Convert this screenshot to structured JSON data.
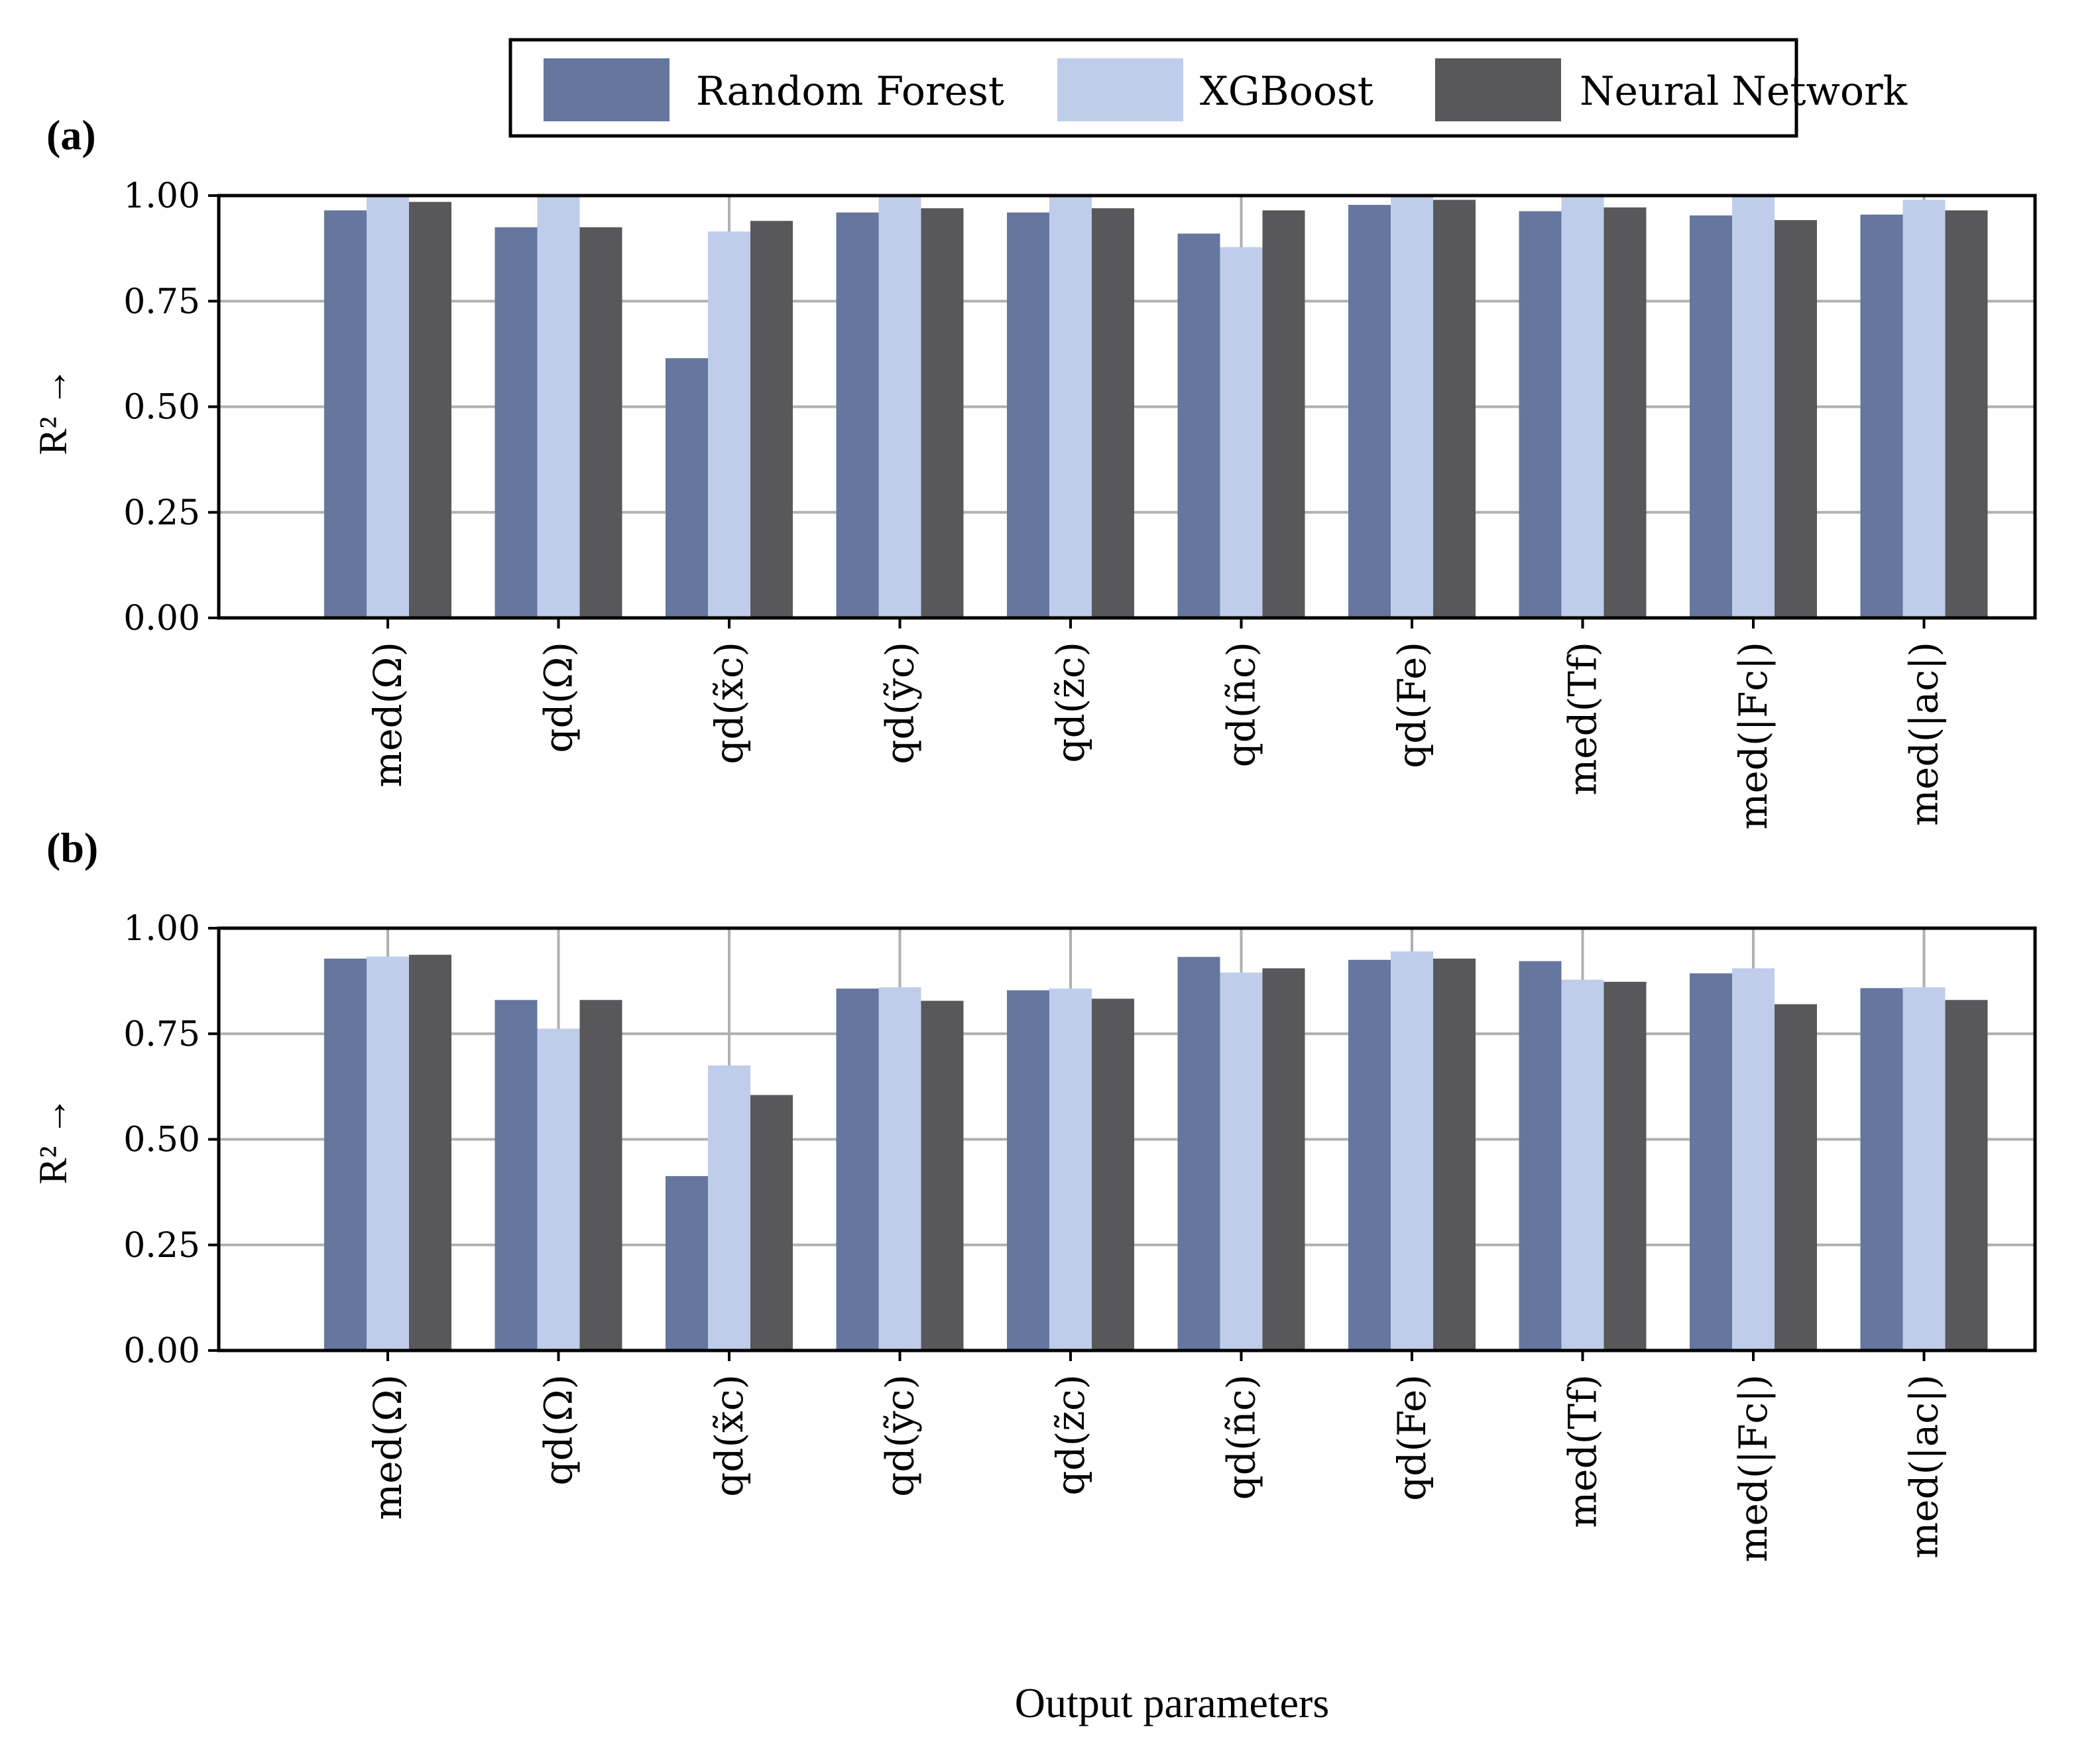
{
  "chart_data": [
    {
      "type": "bar",
      "panel_label": "(a)",
      "ylabel": "R² →",
      "ylim": [
        0,
        1
      ],
      "yticks": [
        "0.00",
        "0.25",
        "0.50",
        "0.75",
        "1.00"
      ],
      "grid": true,
      "categories": [
        "med(Ω)",
        "qd(Ω)",
        "qd(x̃c)",
        "qd(ỹc)",
        "qd(z̃c)",
        "qd(ñc)",
        "qd(Fe)",
        "med(Tf)",
        "med(|Fc|)",
        "med(|ac|)"
      ],
      "series": [
        {
          "name": "Random Forest",
          "values": [
            0.965,
            0.925,
            0.615,
            0.96,
            0.96,
            0.91,
            0.978,
            0.963,
            0.953,
            0.955
          ]
        },
        {
          "name": "XGBoost",
          "values": [
            1.0,
            1.0,
            0.915,
            1.0,
            1.0,
            0.878,
            1.0,
            1.0,
            1.0,
            0.99
          ]
        },
        {
          "name": "Neural Network",
          "values": [
            0.985,
            0.925,
            0.94,
            0.97,
            0.97,
            0.965,
            0.99,
            0.972,
            0.942,
            0.965
          ]
        }
      ]
    },
    {
      "type": "bar",
      "panel_label": "(b)",
      "ylabel": "R² →",
      "xlabel": "Output parameters",
      "ylim": [
        0,
        1
      ],
      "yticks": [
        "0.00",
        "0.25",
        "0.50",
        "0.75",
        "1.00"
      ],
      "grid": true,
      "categories": [
        "med(Ω)",
        "qd(Ω)",
        "qd(x̃c)",
        "qd(ỹc)",
        "qd(z̃c)",
        "qd(ñc)",
        "qd(Fe)",
        "med(Tf)",
        "med(|Fc|)",
        "med(|ac|)"
      ],
      "series": [
        {
          "name": "Random Forest",
          "values": [
            0.928,
            0.83,
            0.413,
            0.857,
            0.853,
            0.932,
            0.925,
            0.922,
            0.893,
            0.858
          ]
        },
        {
          "name": "XGBoost",
          "values": [
            0.933,
            0.762,
            0.675,
            0.86,
            0.857,
            0.895,
            0.945,
            0.878,
            0.905,
            0.86
          ]
        },
        {
          "name": "Neural Network",
          "values": [
            0.937,
            0.83,
            0.605,
            0.828,
            0.833,
            0.905,
            0.928,
            0.873,
            0.82,
            0.83
          ]
        }
      ]
    }
  ],
  "legend": {
    "position": "top",
    "entries": [
      {
        "label": "Random Forest",
        "color": "#65779e"
      },
      {
        "label": "XGBoost",
        "color": "#bfcdeb"
      },
      {
        "label": "Neural Network",
        "color": "#58585a"
      }
    ]
  },
  "xlabel": "Output parameters"
}
